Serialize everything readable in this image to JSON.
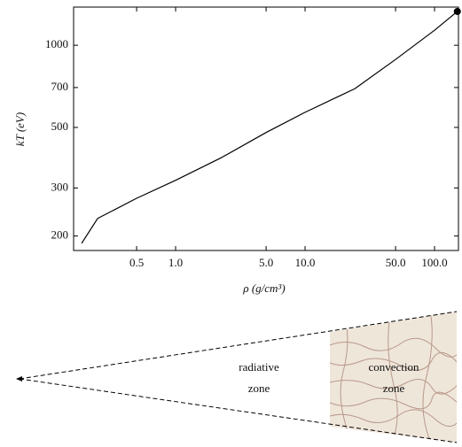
{
  "chart_data": {
    "type": "line",
    "x_label": "ρ (g/cm³)",
    "y_label": "kT (eV)",
    "x": [
      0.188,
      0.25,
      0.5,
      1,
      2.27,
      5,
      10,
      24.2,
      50,
      100,
      150
    ],
    "values": [
      188,
      232,
      275,
      320,
      388,
      479,
      568,
      693,
      887,
      1135,
      1330
    ],
    "color": "#000000",
    "xlog": true,
    "ylog": true,
    "xlim": [
      0.163,
      153
    ],
    "ylim": [
      177,
      1380
    ],
    "xticks": [
      0.5,
      {
        "value": 1,
        "label": "1.0"
      },
      {
        "value": 5,
        "label": "5.0"
      },
      {
        "value": 10,
        "label": "10.0"
      },
      {
        "value": 50,
        "label": "50.0"
      },
      {
        "value": 100,
        "label": "100.0"
      }
    ],
    "yticks": [
      200,
      300,
      500,
      700,
      1000
    ]
  },
  "diagram": {
    "labels": [
      [
        "radiative",
        "zone"
      ],
      [
        "convection",
        "zone"
      ]
    ]
  }
}
